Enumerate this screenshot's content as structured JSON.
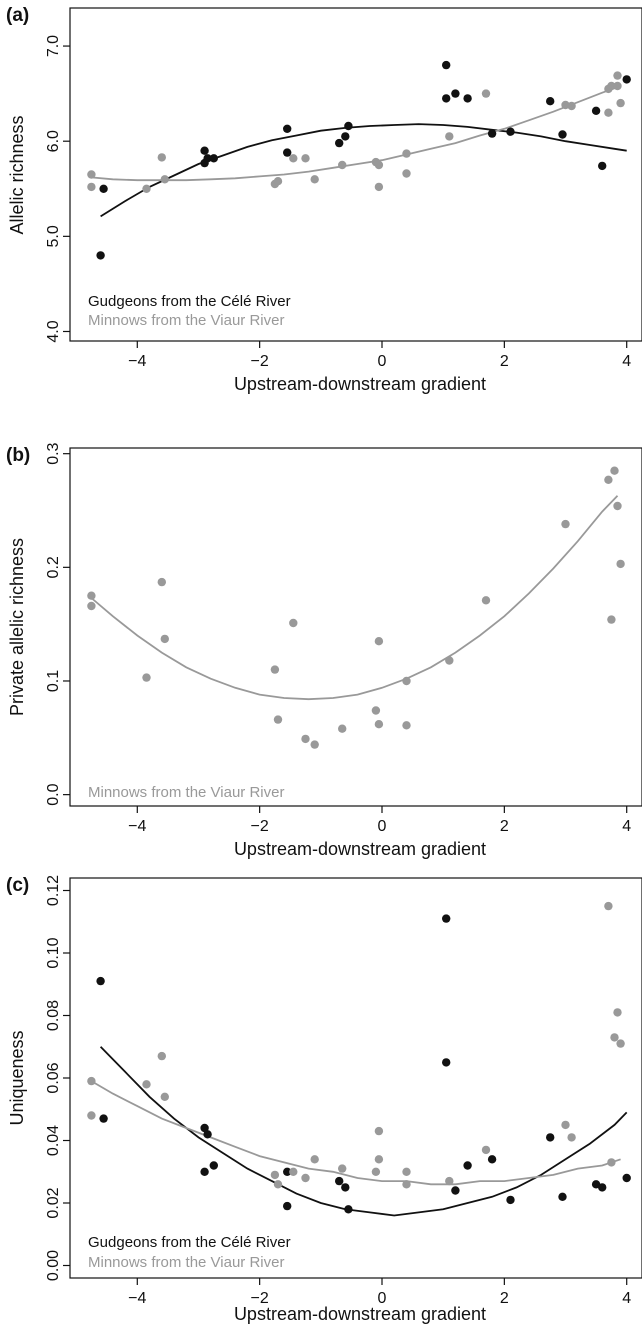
{
  "colors": {
    "gudgeon": "#111111",
    "minnow": "#999999",
    "axis": "#111111"
  },
  "xlabel": "Upstream-downstream gradient",
  "chart_data": [
    {
      "panel_label": "(a)",
      "type": "scatter",
      "ylabel": "Allelic richness",
      "xlim": [
        -5.1,
        4.25
      ],
      "ylim": [
        3.9,
        7.4
      ],
      "xticks": [
        -4,
        -2,
        0,
        2,
        4
      ],
      "yticks": [
        4.0,
        5.0,
        6.0,
        7.0
      ],
      "ytick_labels": [
        "4.0",
        "5.0",
        "6.0",
        "7.0"
      ],
      "legend_position": "bottom-left",
      "series": [
        {
          "name": "Gudgeons from the Célé River",
          "color": "#111111",
          "points": [
            [
              -4.6,
              4.8
            ],
            [
              -4.55,
              5.5
            ],
            [
              -2.9,
              5.9
            ],
            [
              -2.9,
              5.77
            ],
            [
              -2.85,
              5.82
            ],
            [
              -2.75,
              5.82
            ],
            [
              -1.55,
              6.13
            ],
            [
              -1.55,
              5.88
            ],
            [
              -0.7,
              5.98
            ],
            [
              -0.6,
              6.05
            ],
            [
              -0.55,
              6.16
            ],
            [
              1.05,
              6.8
            ],
            [
              1.05,
              6.45
            ],
            [
              1.2,
              6.5
            ],
            [
              1.4,
              6.45
            ],
            [
              1.8,
              6.08
            ],
            [
              2.1,
              6.1
            ],
            [
              2.75,
              6.42
            ],
            [
              2.95,
              6.07
            ],
            [
              3.5,
              6.32
            ],
            [
              3.6,
              5.74
            ],
            [
              4.0,
              6.65
            ]
          ],
          "fit": [
            [
              -4.6,
              5.21
            ],
            [
              -4.2,
              5.37
            ],
            [
              -3.8,
              5.52
            ],
            [
              -3.4,
              5.64
            ],
            [
              -3.0,
              5.76
            ],
            [
              -2.6,
              5.85
            ],
            [
              -2.2,
              5.94
            ],
            [
              -1.8,
              6.01
            ],
            [
              -1.4,
              6.06
            ],
            [
              -1.0,
              6.11
            ],
            [
              -0.6,
              6.14
            ],
            [
              -0.2,
              6.16
            ],
            [
              0.2,
              6.17
            ],
            [
              0.6,
              6.18
            ],
            [
              1.0,
              6.17
            ],
            [
              1.4,
              6.15
            ],
            [
              1.8,
              6.12
            ],
            [
              2.2,
              6.09
            ],
            [
              2.6,
              6.05
            ],
            [
              3.0,
              6.0
            ],
            [
              3.4,
              5.96
            ],
            [
              3.8,
              5.92
            ],
            [
              4.0,
              5.9
            ]
          ]
        },
        {
          "name": "Minnows from the Viaur River",
          "color": "#999999",
          "points": [
            [
              -4.75,
              5.65
            ],
            [
              -4.75,
              5.52
            ],
            [
              -3.85,
              5.5
            ],
            [
              -3.6,
              5.83
            ],
            [
              -3.55,
              5.6
            ],
            [
              -1.75,
              5.55
            ],
            [
              -1.7,
              5.58
            ],
            [
              -1.45,
              5.82
            ],
            [
              -1.25,
              5.82
            ],
            [
              -1.1,
              5.6
            ],
            [
              -0.65,
              5.75
            ],
            [
              -0.1,
              5.78
            ],
            [
              -0.05,
              5.75
            ],
            [
              -0.05,
              5.52
            ],
            [
              0.4,
              5.87
            ],
            [
              0.4,
              5.66
            ],
            [
              1.1,
              6.05
            ],
            [
              1.7,
              6.5
            ],
            [
              3.0,
              6.38
            ],
            [
              3.1,
              6.37
            ],
            [
              3.7,
              6.55
            ],
            [
              3.75,
              6.58
            ],
            [
              3.85,
              6.69
            ],
            [
              3.85,
              6.58
            ],
            [
              3.7,
              6.3
            ],
            [
              3.9,
              6.4
            ]
          ],
          "fit": [
            [
              -4.75,
              5.62
            ],
            [
              -4.4,
              5.6
            ],
            [
              -4.0,
              5.59
            ],
            [
              -3.6,
              5.59
            ],
            [
              -3.2,
              5.59
            ],
            [
              -2.8,
              5.6
            ],
            [
              -2.4,
              5.61
            ],
            [
              -2.0,
              5.63
            ],
            [
              -1.6,
              5.65
            ],
            [
              -1.2,
              5.68
            ],
            [
              -0.8,
              5.72
            ],
            [
              -0.4,
              5.76
            ],
            [
              0.0,
              5.8
            ],
            [
              0.4,
              5.86
            ],
            [
              0.8,
              5.92
            ],
            [
              1.2,
              5.98
            ],
            [
              1.6,
              6.06
            ],
            [
              2.0,
              6.13
            ],
            [
              2.4,
              6.22
            ],
            [
              2.8,
              6.31
            ],
            [
              3.2,
              6.41
            ],
            [
              3.6,
              6.51
            ],
            [
              3.9,
              6.58
            ]
          ]
        }
      ]
    },
    {
      "panel_label": "(b)",
      "type": "scatter",
      "ylabel": "Private allelic richness",
      "xlim": [
        -5.1,
        4.25
      ],
      "ylim": [
        -0.01,
        0.305
      ],
      "xticks": [
        -4,
        -2,
        0,
        2,
        4
      ],
      "yticks": [
        0.0,
        0.1,
        0.2,
        0.3
      ],
      "ytick_labels": [
        "0.0",
        "0.1",
        "0.2",
        "0.3"
      ],
      "legend_position": "bottom-left",
      "series": [
        {
          "name": "Minnows from the Viaur River",
          "color": "#999999",
          "points": [
            [
              -4.75,
              0.175
            ],
            [
              -4.75,
              0.166
            ],
            [
              -3.85,
              0.103
            ],
            [
              -3.6,
              0.187
            ],
            [
              -3.55,
              0.137
            ],
            [
              -1.75,
              0.11
            ],
            [
              -1.7,
              0.066
            ],
            [
              -1.45,
              0.151
            ],
            [
              -1.25,
              0.049
            ],
            [
              -1.1,
              0.044
            ],
            [
              -0.65,
              0.058
            ],
            [
              -0.1,
              0.074
            ],
            [
              -0.05,
              0.062
            ],
            [
              -0.05,
              0.135
            ],
            [
              0.4,
              0.1
            ],
            [
              0.4,
              0.061
            ],
            [
              1.1,
              0.118
            ],
            [
              1.7,
              0.171
            ],
            [
              3.0,
              0.238
            ],
            [
              3.7,
              0.277
            ],
            [
              3.75,
              0.154
            ],
            [
              3.8,
              0.285
            ],
            [
              3.85,
              0.254
            ],
            [
              3.9,
              0.203
            ]
          ],
          "fit": [
            [
              -4.75,
              0.173
            ],
            [
              -4.4,
              0.157
            ],
            [
              -4.0,
              0.14
            ],
            [
              -3.6,
              0.125
            ],
            [
              -3.2,
              0.112
            ],
            [
              -2.8,
              0.102
            ],
            [
              -2.4,
              0.094
            ],
            [
              -2.0,
              0.088
            ],
            [
              -1.6,
              0.085
            ],
            [
              -1.2,
              0.084
            ],
            [
              -0.8,
              0.085
            ],
            [
              -0.4,
              0.088
            ],
            [
              0.0,
              0.094
            ],
            [
              0.4,
              0.102
            ],
            [
              0.8,
              0.112
            ],
            [
              1.2,
              0.125
            ],
            [
              1.6,
              0.14
            ],
            [
              2.0,
              0.157
            ],
            [
              2.4,
              0.177
            ],
            [
              2.8,
              0.199
            ],
            [
              3.2,
              0.223
            ],
            [
              3.6,
              0.249
            ],
            [
              3.85,
              0.263
            ]
          ]
        }
      ]
    },
    {
      "panel_label": "(c)",
      "type": "scatter",
      "ylabel": "Uniqueness",
      "xlim": [
        -5.1,
        4.25
      ],
      "ylim": [
        -0.004,
        0.124
      ],
      "xticks": [
        -4,
        -2,
        0,
        2,
        4
      ],
      "yticks": [
        0.0,
        0.02,
        0.04,
        0.06,
        0.08,
        0.1,
        0.12
      ],
      "ytick_labels": [
        "0.00",
        "0.02",
        "0.04",
        "0.06",
        "0.08",
        "0.10",
        "0.12"
      ],
      "legend_position": "bottom-left",
      "series": [
        {
          "name": "Gudgeons from the Célé River",
          "color": "#111111",
          "points": [
            [
              -4.6,
              0.091
            ],
            [
              -4.55,
              0.047
            ],
            [
              -2.9,
              0.044
            ],
            [
              -2.9,
              0.03
            ],
            [
              -2.85,
              0.042
            ],
            [
              -2.75,
              0.032
            ],
            [
              -1.55,
              0.03
            ],
            [
              -1.55,
              0.019
            ],
            [
              -0.7,
              0.027
            ],
            [
              -0.6,
              0.025
            ],
            [
              -0.55,
              0.018
            ],
            [
              1.05,
              0.111
            ],
            [
              1.05,
              0.065
            ],
            [
              1.2,
              0.024
            ],
            [
              1.4,
              0.032
            ],
            [
              1.8,
              0.034
            ],
            [
              2.1,
              0.021
            ],
            [
              2.75,
              0.041
            ],
            [
              2.95,
              0.022
            ],
            [
              3.5,
              0.026
            ],
            [
              3.6,
              0.025
            ],
            [
              4.0,
              0.028
            ]
          ],
          "fit": [
            [
              -4.6,
              0.07
            ],
            [
              -4.2,
              0.062
            ],
            [
              -3.8,
              0.054
            ],
            [
              -3.4,
              0.047
            ],
            [
              -3.0,
              0.041
            ],
            [
              -2.6,
              0.036
            ],
            [
              -2.2,
              0.031
            ],
            [
              -1.8,
              0.027
            ],
            [
              -1.4,
              0.023
            ],
            [
              -1.0,
              0.02
            ],
            [
              -0.6,
              0.018
            ],
            [
              -0.2,
              0.017
            ],
            [
              0.2,
              0.016
            ],
            [
              0.6,
              0.017
            ],
            [
              1.0,
              0.018
            ],
            [
              1.4,
              0.02
            ],
            [
              1.8,
              0.022
            ],
            [
              2.2,
              0.025
            ],
            [
              2.6,
              0.029
            ],
            [
              3.0,
              0.034
            ],
            [
              3.4,
              0.039
            ],
            [
              3.8,
              0.045
            ],
            [
              4.0,
              0.049
            ]
          ]
        },
        {
          "name": "Minnows from the Viaur River",
          "color": "#999999",
          "points": [
            [
              -4.75,
              0.059
            ],
            [
              -4.75,
              0.048
            ],
            [
              -3.85,
              0.058
            ],
            [
              -3.6,
              0.067
            ],
            [
              -3.55,
              0.054
            ],
            [
              -1.75,
              0.029
            ],
            [
              -1.7,
              0.026
            ],
            [
              -1.45,
              0.03
            ],
            [
              -1.25,
              0.028
            ],
            [
              -1.1,
              0.034
            ],
            [
              -0.65,
              0.031
            ],
            [
              -0.1,
              0.03
            ],
            [
              -0.05,
              0.043
            ],
            [
              -0.05,
              0.034
            ],
            [
              0.4,
              0.03
            ],
            [
              0.4,
              0.026
            ],
            [
              1.1,
              0.027
            ],
            [
              1.7,
              0.037
            ],
            [
              3.0,
              0.045
            ],
            [
              3.1,
              0.041
            ],
            [
              3.7,
              0.115
            ],
            [
              3.75,
              0.033
            ],
            [
              3.8,
              0.073
            ],
            [
              3.85,
              0.081
            ],
            [
              3.9,
              0.071
            ]
          ],
          "fit": [
            [
              -4.75,
              0.059
            ],
            [
              -4.4,
              0.055
            ],
            [
              -4.0,
              0.051
            ],
            [
              -3.6,
              0.047
            ],
            [
              -3.2,
              0.044
            ],
            [
              -2.8,
              0.041
            ],
            [
              -2.4,
              0.038
            ],
            [
              -2.0,
              0.035
            ],
            [
              -1.6,
              0.033
            ],
            [
              -1.2,
              0.031
            ],
            [
              -0.8,
              0.03
            ],
            [
              -0.4,
              0.028
            ],
            [
              0.0,
              0.027
            ],
            [
              0.4,
              0.027
            ],
            [
              0.8,
              0.026
            ],
            [
              1.2,
              0.026
            ],
            [
              1.6,
              0.027
            ],
            [
              2.0,
              0.027
            ],
            [
              2.4,
              0.028
            ],
            [
              2.8,
              0.029
            ],
            [
              3.2,
              0.031
            ],
            [
              3.6,
              0.032
            ],
            [
              3.9,
              0.034
            ]
          ]
        }
      ]
    }
  ]
}
